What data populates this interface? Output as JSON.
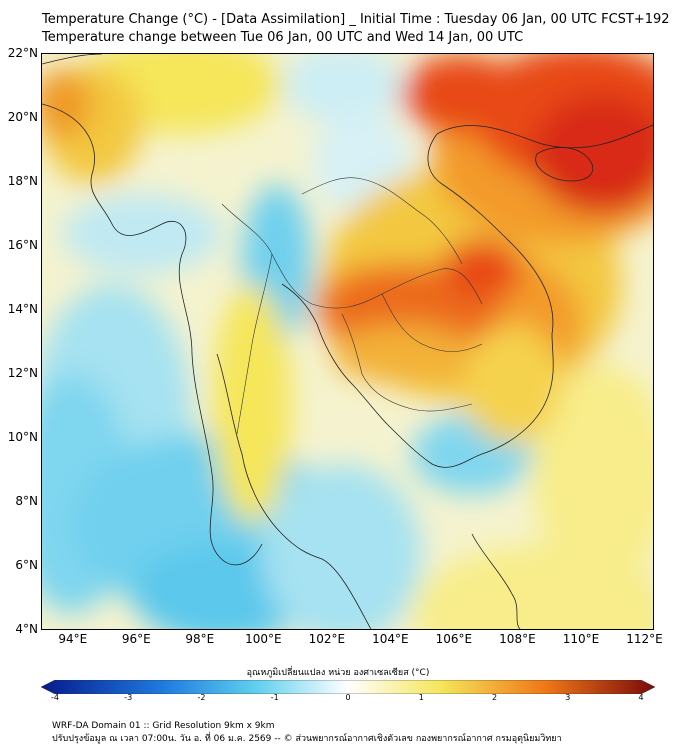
{
  "header": {
    "title_line1": "Temperature Change (°C) - [Data Assimilation] _ Initial Time : Tuesday 06 Jan, 00 UTC FCST+192",
    "title_line2": "Temperature change between Tue 06 Jan, 00 UTC and Wed 14 Jan, 00 UTC"
  },
  "map": {
    "lat_labels": [
      "22°N",
      "20°N",
      "18°N",
      "16°N",
      "14°N",
      "12°N",
      "10°N",
      "8°N",
      "6°N",
      "4°N"
    ],
    "lon_labels": [
      "94°E",
      "96°E",
      "98°E",
      "100°E",
      "102°E",
      "104°E",
      "106°E",
      "108°E",
      "110°E",
      "112°E"
    ],
    "lat_range": [
      4,
      22
    ],
    "lon_range": [
      93,
      112.3
    ],
    "background_color": "#f5f3cf"
  },
  "colorbar": {
    "caption": "อุณหภูมิเปลี่ยนแปลง หน่วย องศาเซลเซียส (°C)",
    "ticks": [
      "-4",
      "-3",
      "-2",
      "-1",
      "0",
      "1",
      "2",
      "3",
      "4"
    ],
    "range": [
      -4,
      4
    ],
    "colors": {
      "min": "#061a8c",
      "cold": "#1f7be0",
      "cool": "#5fd0ee",
      "neutral": "#ffffff",
      "warm": "#f5e65a",
      "hot": "#f07818",
      "max": "#7a0a0a"
    }
  },
  "footer": {
    "line1": "WRF-DA Domain 01 :: Grid Resolution 9km x 9km",
    "line2": "ปรับปรุงข้อมูล ณ เวลา 07:00น. วัน อ. ที่ 06 ม.ค. 2569 -- © ส่วนพยากรณ์อากาศเชิงตัวเลข กองพยากรณ์อากาศ กรมอุตุนิยมวิทยา"
  }
}
